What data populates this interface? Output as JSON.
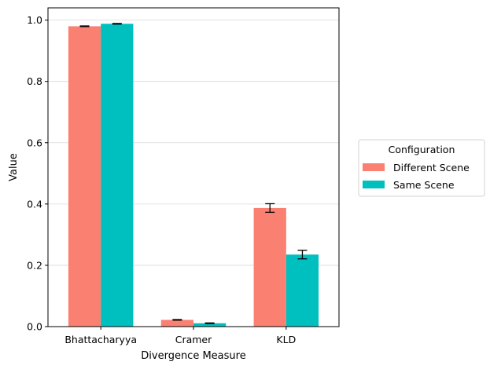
{
  "chart_data": {
    "type": "bar",
    "title": "",
    "xlabel": "Divergence Measure",
    "ylabel": "Value",
    "categories": [
      "Bhattacharyya",
      "Cramer",
      "KLD"
    ],
    "series": [
      {
        "name": "Different Scene",
        "color": "#fa8072",
        "values": [
          0.98,
          0.022,
          0.387
        ],
        "errors": [
          0.001,
          0.001,
          0.014
        ]
      },
      {
        "name": "Same Scene",
        "color": "#00bfbf",
        "values": [
          0.988,
          0.011,
          0.235
        ],
        "errors": [
          0.001,
          0.001,
          0.014
        ]
      }
    ],
    "ylim": [
      0,
      1.04
    ],
    "yticks": [
      0.0,
      0.2,
      0.4,
      0.6,
      0.8,
      1.0
    ],
    "ytick_labels": [
      "0.0",
      "0.2",
      "0.4",
      "0.6",
      "0.8",
      "1.0"
    ],
    "grid": "y",
    "legend": {
      "title": "Configuration",
      "placement": "right-outside"
    }
  }
}
